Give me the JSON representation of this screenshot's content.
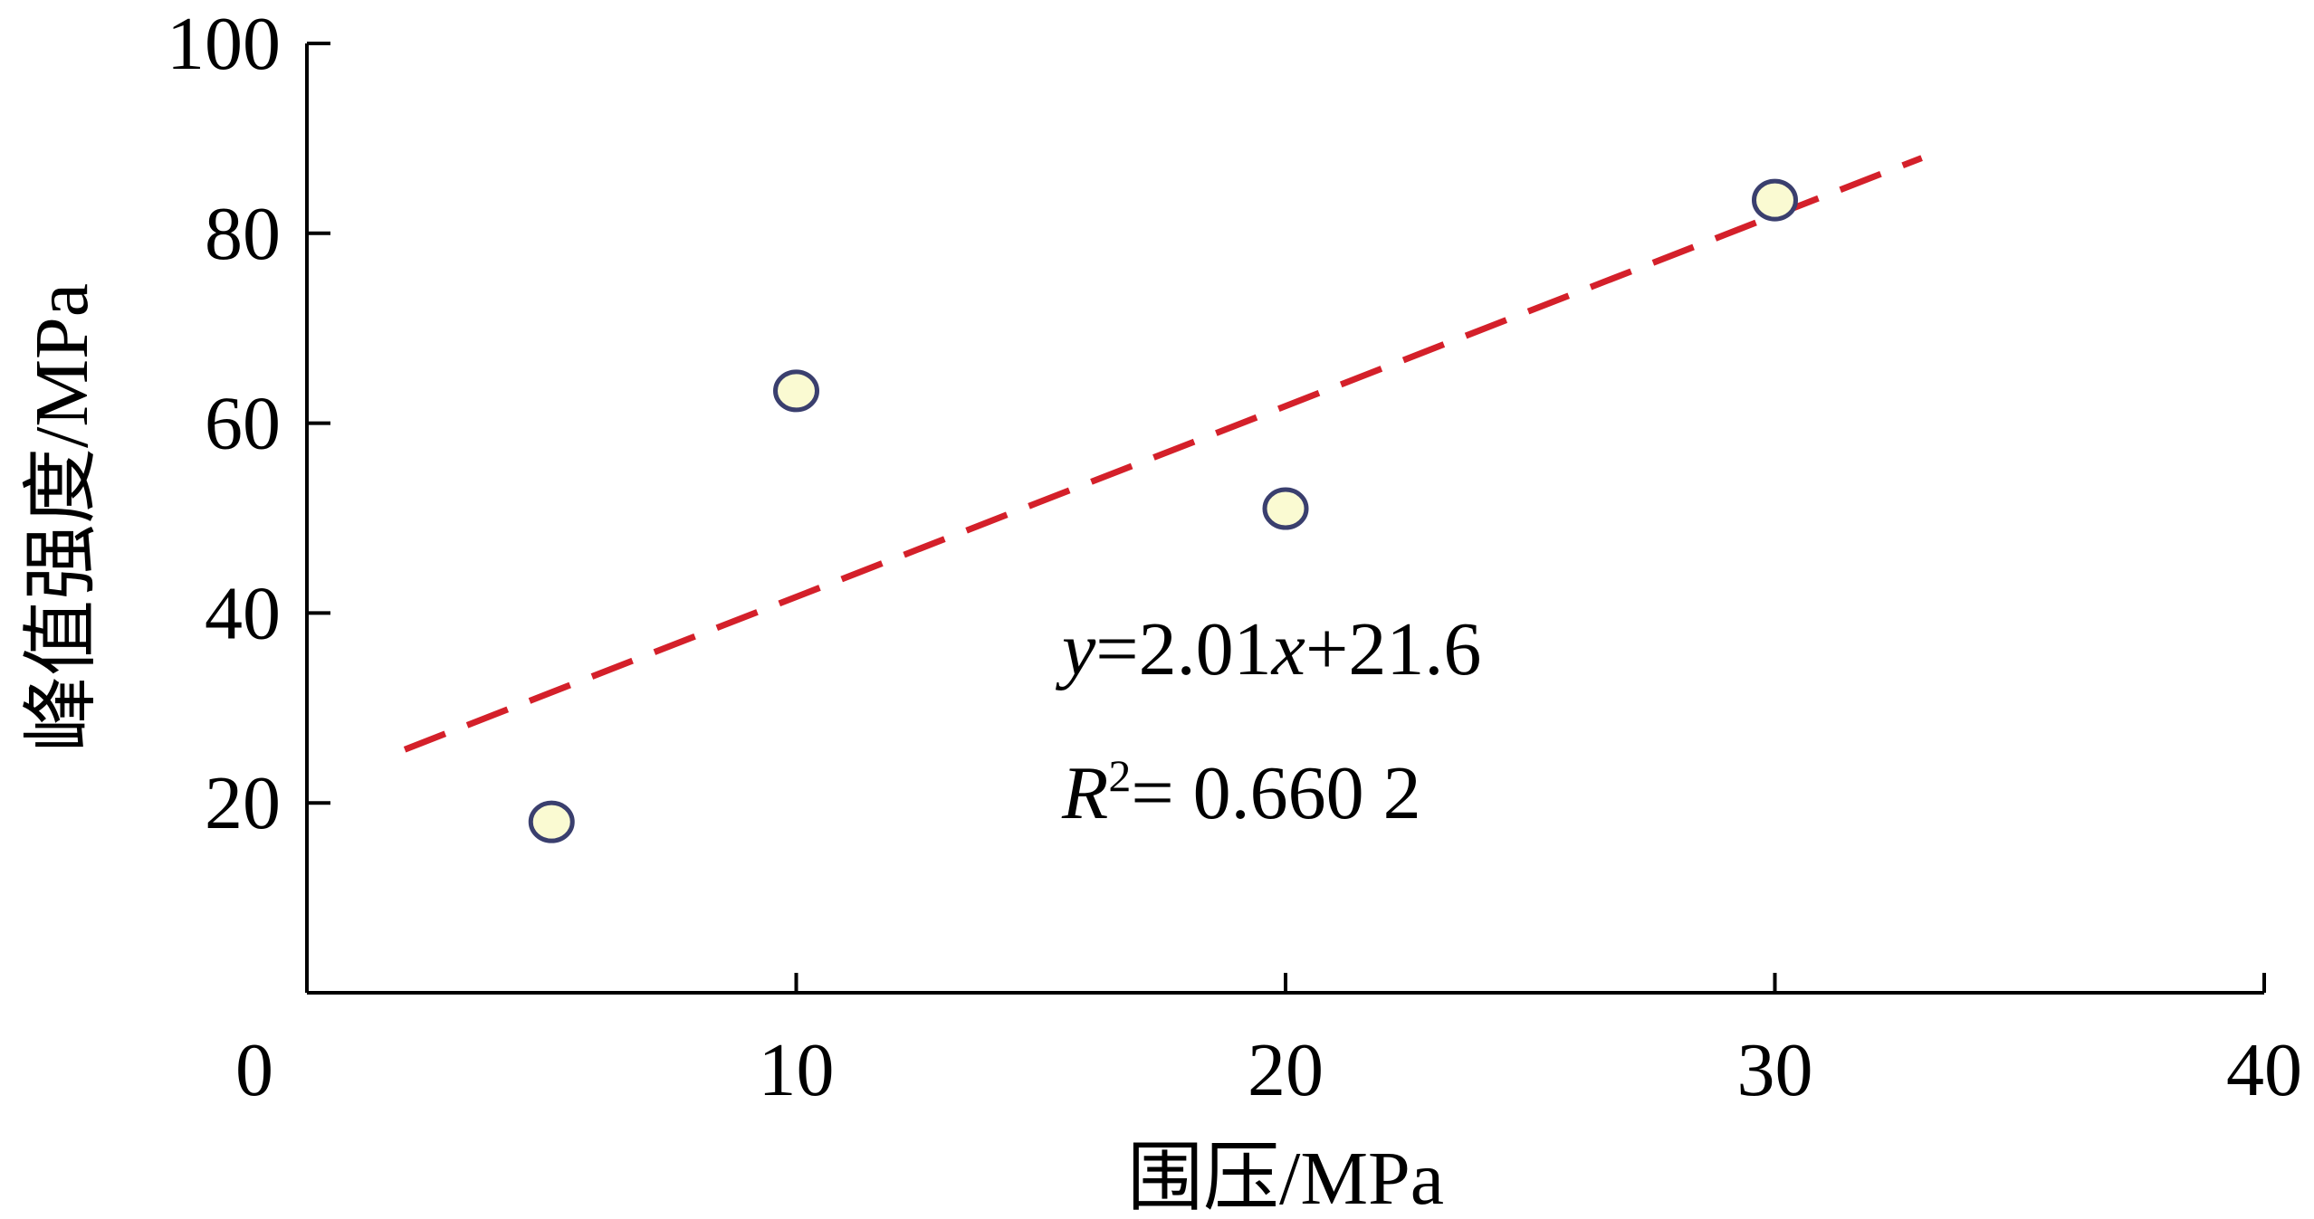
{
  "chart_data": {
    "type": "scatter",
    "xlabel": "围压/MPa",
    "ylabel": "峰值强度/MPa",
    "xlim": [
      0,
      40
    ],
    "ylim": [
      0,
      100
    ],
    "xticks": [
      "0",
      "10",
      "20",
      "30",
      "40"
    ],
    "yticks": [
      "20",
      "40",
      "60",
      "80",
      "100"
    ],
    "grid": false,
    "series": [
      {
        "points": [
          {
            "x": 5,
            "y": 18
          },
          {
            "x": 10,
            "y": 63.4
          },
          {
            "x": 20,
            "y": 51
          },
          {
            "x": 30,
            "y": 83.5
          }
        ]
      }
    ],
    "fit": {
      "slope": 2.01,
      "intercept": 21.6,
      "x_range": [
        2,
        33
      ],
      "equation_text": {
        "y": "y",
        "eq_part1": "=2.01",
        "x": "x",
        "eq_part2": "+21.6",
        "r": "R",
        "sup": "2",
        "r2_value": "= 0.660 2"
      }
    },
    "colors": {
      "marker_fill": "#fafad2",
      "marker_edge": "#3a3f6e",
      "fit_line": "#d4202a",
      "axis": "#000000"
    }
  }
}
